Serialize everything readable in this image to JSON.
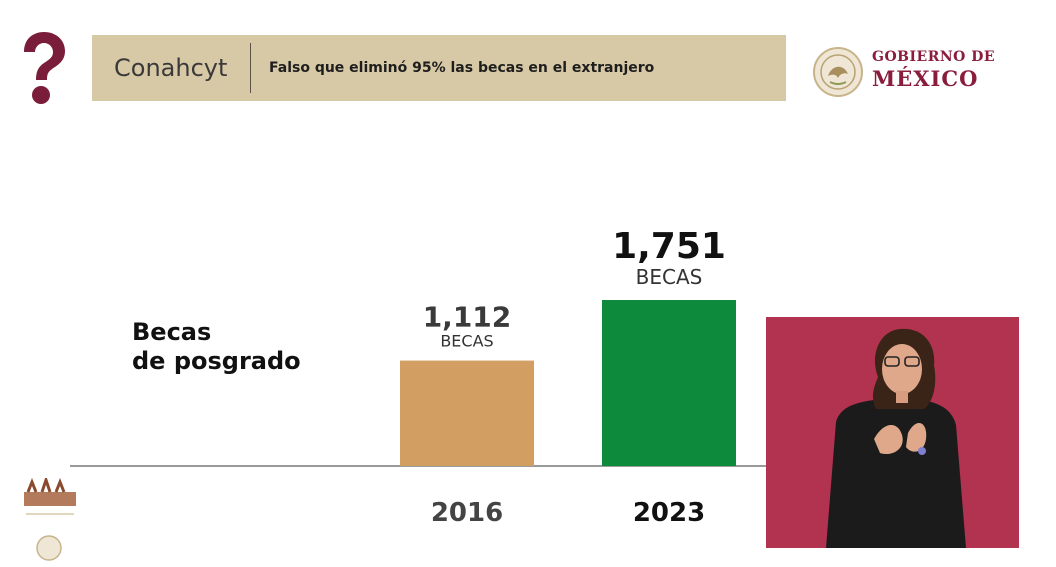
{
  "header": {
    "org": "Conahcyt",
    "claim": "Falso que eliminó 95% las becas en el extranjero"
  },
  "logos": {
    "gov_line1": "GOBIERNO DE",
    "gov_line2": "MÉXICO",
    "brand_color": "#8a1c3c",
    "band_color": "#d8c9a6",
    "question_icon": "question-mark-icon",
    "emblem_icon": "eagle-emblem-icon"
  },
  "side_title": [
    "Becas",
    "de posgrado"
  ],
  "chart_data": {
    "type": "bar",
    "categories": [
      "2016",
      "2023"
    ],
    "values": [
      1112,
      1751
    ],
    "value_labels": [
      "1,112",
      "1,751"
    ],
    "unit_label": "BECAS",
    "colors": [
      "#d29e62",
      "#0e8a3c"
    ],
    "title": "",
    "xlabel": "",
    "ylabel": "",
    "ylim": [
      0,
      1751
    ],
    "grid": false,
    "legend": "none"
  },
  "interpreter": {
    "description": "sign-language-interpreter",
    "background": "#b2334f"
  }
}
